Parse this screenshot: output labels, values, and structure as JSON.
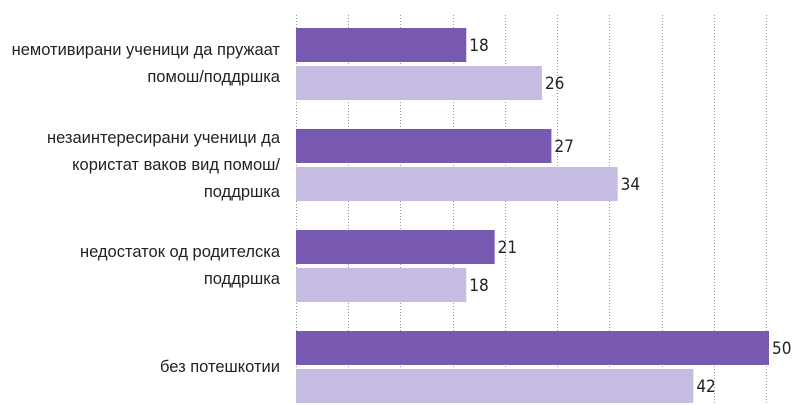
{
  "chart_data": {
    "type": "hbar",
    "categories": [
      "немотивирани ученици да пружаат помош/поддршка",
      "незаинтересирани ученици да користат ваков вид помош/ поддршка",
      "недостаток од родителска поддршка",
      "без потешкотии"
    ],
    "series": [
      {
        "color": "#7859b1",
        "values": [
          18,
          27,
          21,
          50
        ]
      },
      {
        "color": "#c6bbe1",
        "values": [
          26,
          34,
          18,
          42
        ]
      }
    ],
    "xlim": [
      0,
      50
    ]
  }
}
